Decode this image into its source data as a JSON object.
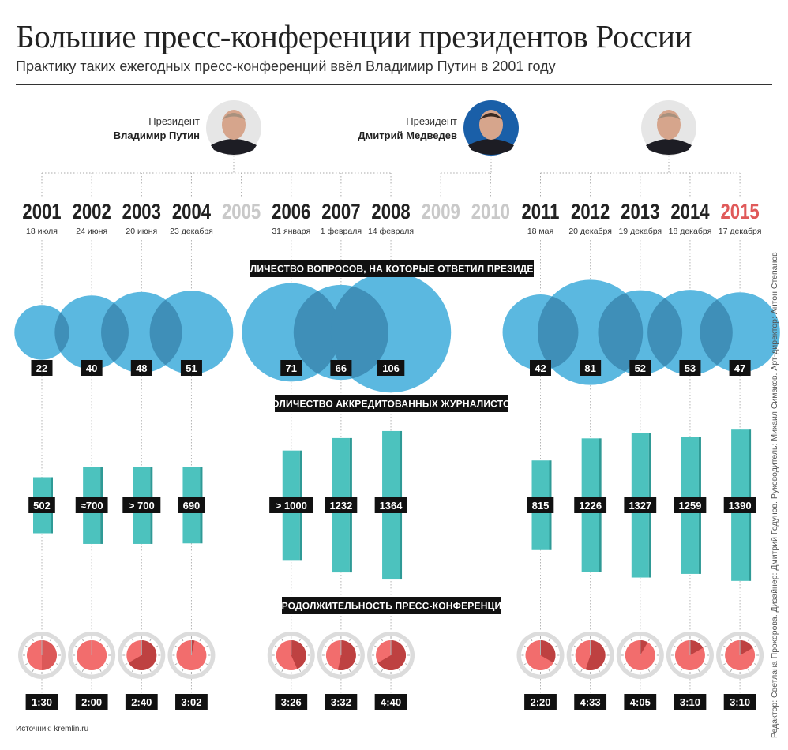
{
  "title": "Большие пресс-конференции президентов России",
  "subtitle": "Практику таких ежегодных пресс-конференций ввёл Владимир Путин в 2001 году",
  "credits": "Редактор: Светлана Прохорова. Дизайнер: Дмитрий Годунов. Руководитель: Михаил Симаков. Арт-директор: Антон Степанов",
  "source": "Источник: kremlin.ru",
  "presidents": [
    {
      "role": "Президент",
      "name": "Владимир Путин",
      "label_side": "left"
    },
    {
      "role": "Президент",
      "name": "Дмитрий Медведев",
      "label_side": "left"
    },
    {
      "role": "",
      "name": "",
      "label_side": "none"
    }
  ],
  "colors": {
    "bubble": "#5bb8e0",
    "bubble_overlap": "#3f8fb8",
    "bar": "#4cc2be",
    "bar_shadow": "#2f9a96",
    "clock_fill": "#f26d6d",
    "highlight_year": "#e05a5a",
    "muted_year": "#c9c9c9"
  },
  "chart_data": {
    "type": "infographic",
    "sections": [
      "КОЛИЧЕСТВО ВОПРОСОВ, НА КОТОРЫЕ ОТВЕТИЛ ПРЕЗИДЕНТ",
      "КОЛИЧЕСТВО АККРЕДИТОВАННЫХ ЖУРНАЛИСТОВ",
      "ПРОДОЛЖИТЕЛЬНОСТЬ ПРЕСС-КОНФЕРЕНЦИЙ"
    ],
    "years": [
      {
        "year": "2001",
        "date": "18 июля",
        "status": "held",
        "questions": 22,
        "questions_label": "22",
        "journalists": 502,
        "journalists_label": "502",
        "duration_min": 90,
        "duration_label": "1:30"
      },
      {
        "year": "2002",
        "date": "24 июня",
        "status": "held",
        "questions": 40,
        "questions_label": "40",
        "journalists": 700,
        "journalists_label": "≈700",
        "duration_min": 120,
        "duration_label": "2:00"
      },
      {
        "year": "2003",
        "date": "20 июня",
        "status": "held",
        "questions": 48,
        "questions_label": "48",
        "journalists": 700,
        "journalists_label": "> 700",
        "duration_min": 160,
        "duration_label": "2:40"
      },
      {
        "year": "2004",
        "date": "23 декабря",
        "status": "held",
        "questions": 51,
        "questions_label": "51",
        "journalists": 690,
        "journalists_label": "690",
        "duration_min": 182,
        "duration_label": "3:02"
      },
      {
        "year": "2005",
        "date": "",
        "status": "none"
      },
      {
        "year": "2006",
        "date": "31 января",
        "status": "held",
        "questions": 71,
        "questions_label": "71",
        "journalists": 1000,
        "journalists_label": "> 1000",
        "duration_min": 206,
        "duration_label": "3:26"
      },
      {
        "year": "2007",
        "date": "1 февраля",
        "status": "held",
        "questions": 66,
        "questions_label": "66",
        "journalists": 1232,
        "journalists_label": "1232",
        "duration_min": 212,
        "duration_label": "3:32"
      },
      {
        "year": "2008",
        "date": "14 февраля",
        "status": "held",
        "questions": 106,
        "questions_label": "106",
        "journalists": 1364,
        "journalists_label": "1364",
        "duration_min": 280,
        "duration_label": "4:40"
      },
      {
        "year": "2009",
        "date": "",
        "status": "none"
      },
      {
        "year": "2010",
        "date": "",
        "status": "none"
      },
      {
        "year": "2011",
        "date": "18 мая",
        "status": "held",
        "questions": 42,
        "questions_label": "42",
        "journalists": 815,
        "journalists_label": "815",
        "duration_min": 140,
        "duration_label": "2:20"
      },
      {
        "year": "2012",
        "date": "20 декабря",
        "status": "held",
        "questions": 81,
        "questions_label": "81",
        "journalists": 1226,
        "journalists_label": "1226",
        "duration_min": 273,
        "duration_label": "4:33"
      },
      {
        "year": "2013",
        "date": "19 декабря",
        "status": "held",
        "questions": 52,
        "questions_label": "52",
        "journalists": 1327,
        "journalists_label": "1327",
        "duration_min": 245,
        "duration_label": "4:05"
      },
      {
        "year": "2014",
        "date": "18 декабря",
        "status": "held",
        "questions": 53,
        "questions_label": "53",
        "journalists": 1259,
        "journalists_label": "1259",
        "duration_min": 190,
        "duration_label": "3:10"
      },
      {
        "year": "2015",
        "date": "17 декабря",
        "status": "highlight",
        "questions": 47,
        "questions_label": "47",
        "journalists": 1390,
        "journalists_label": "1390",
        "duration_min": 190,
        "duration_label": "3:10"
      }
    ]
  }
}
